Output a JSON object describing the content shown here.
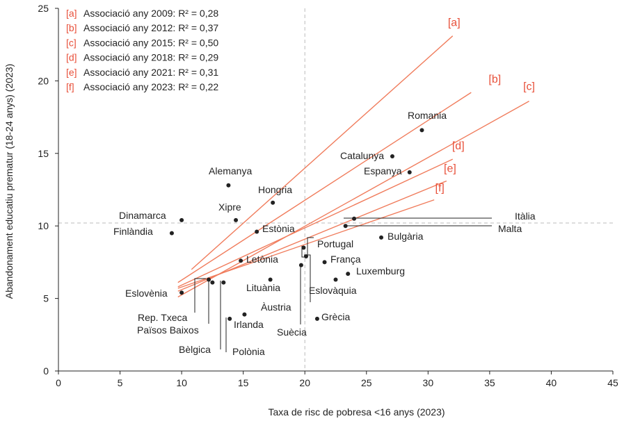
{
  "chart_data": {
    "type": "scatter",
    "xlabel": "Taxa de risc de pobresa <16 anys (2023)",
    "ylabel": "Abandonament educatiu prematur  (18-24 anys) (2023)",
    "xlim": [
      0,
      45
    ],
    "ylim": [
      0,
      25
    ],
    "x_ticks": [
      "0",
      "5",
      "10",
      "15",
      "20",
      "25",
      "30",
      "35",
      "40",
      "45"
    ],
    "y_ticks": [
      "0",
      "5",
      "10",
      "15",
      "20",
      "25"
    ],
    "grid": false,
    "reference_lines": {
      "x": 20,
      "y": 10.2
    },
    "colors": {
      "trend": "#f07c5c",
      "key": "#e8503a",
      "point": "#222222",
      "reference": "#bbbbbb"
    },
    "trend_lines": [
      {
        "key": "[a]",
        "name": "Associació any 2009: R² = 0,28",
        "from": [
          10.8,
          7.0
        ],
        "to": [
          32,
          23.1
        ]
      },
      {
        "key": "[b]",
        "name": "Associació any 2012: R² = 0,37",
        "from": [
          9.7,
          6.1
        ],
        "to": [
          33.5,
          19.2
        ]
      },
      {
        "key": "[c]",
        "name": "Associació any 2015: R² = 0,50",
        "from": [
          9.7,
          5.1
        ],
        "to": [
          38.2,
          18.6
        ]
      },
      {
        "key": "[d]",
        "name": "Associació any 2018: R² = 0,29",
        "from": [
          9.7,
          5.8
        ],
        "to": [
          32,
          14.6
        ]
      },
      {
        "key": "[e]",
        "name": "Associació any 2021: R² = 0,31",
        "from": [
          9.7,
          5.5
        ],
        "to": [
          31.5,
          13.1
        ]
      },
      {
        "key": "[f]",
        "name": "Associació any 2023: R² = 0,22",
        "from": [
          9.7,
          5.7
        ],
        "to": [
          30.5,
          11.8
        ]
      }
    ],
    "points": [
      {
        "label": "Romania",
        "x": 29.5,
        "y": 16.6
      },
      {
        "label": "Catalunya",
        "x": 27.1,
        "y": 14.8
      },
      {
        "label": "Espanya",
        "x": 28.5,
        "y": 13.7
      },
      {
        "label": "Alemanya",
        "x": 13.8,
        "y": 12.8
      },
      {
        "label": "Hongria",
        "x": 17.4,
        "y": 11.6
      },
      {
        "label": "Xipre",
        "x": 14.4,
        "y": 10.4
      },
      {
        "label": "Dinamarca",
        "x": 10.0,
        "y": 10.4
      },
      {
        "label": "Finlàndia",
        "x": 9.2,
        "y": 9.5
      },
      {
        "label": "Estònia",
        "x": 16.1,
        "y": 9.6
      },
      {
        "label": "Itàlia",
        "x": 24.0,
        "y": 10.5
      },
      {
        "label": "Malta",
        "x": 23.3,
        "y": 10.0
      },
      {
        "label": "Bulgària",
        "x": 26.2,
        "y": 9.2
      },
      {
        "label": "Portugal",
        "x": 19.9,
        "y": 8.5
      },
      {
        "label": "Àustria",
        "x": 20.1,
        "y": 7.9
      },
      {
        "label": "Suècia",
        "x": 19.7,
        "y": 7.3
      },
      {
        "label": "França",
        "x": 21.6,
        "y": 7.5
      },
      {
        "label": "Letònia",
        "x": 14.8,
        "y": 7.6
      },
      {
        "label": "Luxemburg",
        "x": 23.5,
        "y": 6.7
      },
      {
        "label": "Eslovàquia",
        "x": 22.5,
        "y": 6.3
      },
      {
        "label": "Lituània",
        "x": 17.2,
        "y": 6.3
      },
      {
        "label": "Eslovènia",
        "x": 10.0,
        "y": 5.4
      },
      {
        "label": "Rep. Txeca",
        "x": 12.2,
        "y": 6.3
      },
      {
        "label": "Països Baixos",
        "x": 12.5,
        "y": 6.1
      },
      {
        "label": "Bèlgica",
        "x": 13.4,
        "y": 6.1
      },
      {
        "label": "Polònia",
        "x": 13.9,
        "y": 3.6
      },
      {
        "label": "Irlanda",
        "x": 15.1,
        "y": 3.9
      },
      {
        "label": "Grècia",
        "x": 21.0,
        "y": 3.6
      }
    ]
  }
}
